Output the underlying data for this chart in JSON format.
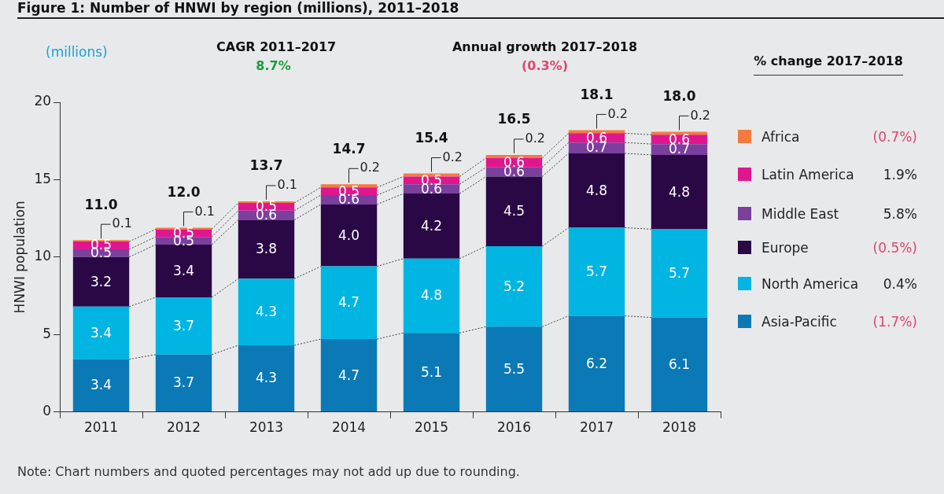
{
  "chart_data": {
    "type": "bar",
    "stacked": true,
    "title": "Figure 1: Number of HNWI by region (millions), 2011–2018",
    "ylabel": "HNWI population",
    "legend_title": "% change 2017–2018",
    "categories": [
      "2011",
      "2012",
      "2013",
      "2014",
      "2015",
      "2016",
      "2017",
      "2018"
    ],
    "series": [
      {
        "name": "Asia-Pacific",
        "color": "#0b79b5",
        "values": [
          3.4,
          3.7,
          4.3,
          4.7,
          5.1,
          5.5,
          6.2,
          6.1
        ]
      },
      {
        "name": "North America",
        "color": "#00b5e2",
        "values": [
          3.4,
          3.7,
          4.3,
          4.7,
          4.8,
          5.2,
          5.7,
          5.7
        ]
      },
      {
        "name": "Europe",
        "color": "#2a0845",
        "values": [
          3.2,
          3.4,
          3.8,
          4.0,
          4.2,
          4.5,
          4.8,
          4.8
        ],
        "value_labels": [
          "3.2",
          "3.4",
          "3.8",
          "4.0",
          "4.2",
          "4.5",
          "4.8",
          "4.8"
        ]
      },
      {
        "name": "Middle East",
        "color": "#7b3f9e",
        "values": [
          0.5,
          0.5,
          0.6,
          0.6,
          0.6,
          0.6,
          0.7,
          0.7
        ]
      },
      {
        "name": "Latin America",
        "color": "#e0168f",
        "values": [
          0.5,
          0.5,
          0.5,
          0.5,
          0.5,
          0.6,
          0.6,
          0.6
        ]
      },
      {
        "name": "Africa",
        "color": "#f47b3f",
        "values": [
          0.1,
          0.1,
          0.1,
          0.2,
          0.2,
          0.2,
          0.2,
          0.2
        ]
      }
    ],
    "totals": [
      "11.0",
      "12.0",
      "13.7",
      "14.7",
      "15.4",
      "16.5",
      "18.1",
      "18.0"
    ],
    "data_labels": true,
    "ylim": [
      0,
      20
    ],
    "yticks": [
      0,
      5,
      10,
      15,
      20
    ],
    "grid": false,
    "legend": "right",
    "annotations": [
      "(millions)",
      "CAGR 2011–2017",
      "8.7%",
      "Annual growth 2017–2018",
      "(0.3%)",
      "(0.7%)",
      "1.9%",
      "5.8%",
      "(0.5%)",
      "0.4%",
      "(1.7%)",
      "Note: Chart numbers and quoted percentages may not add up due to rounding."
    ]
  }
}
